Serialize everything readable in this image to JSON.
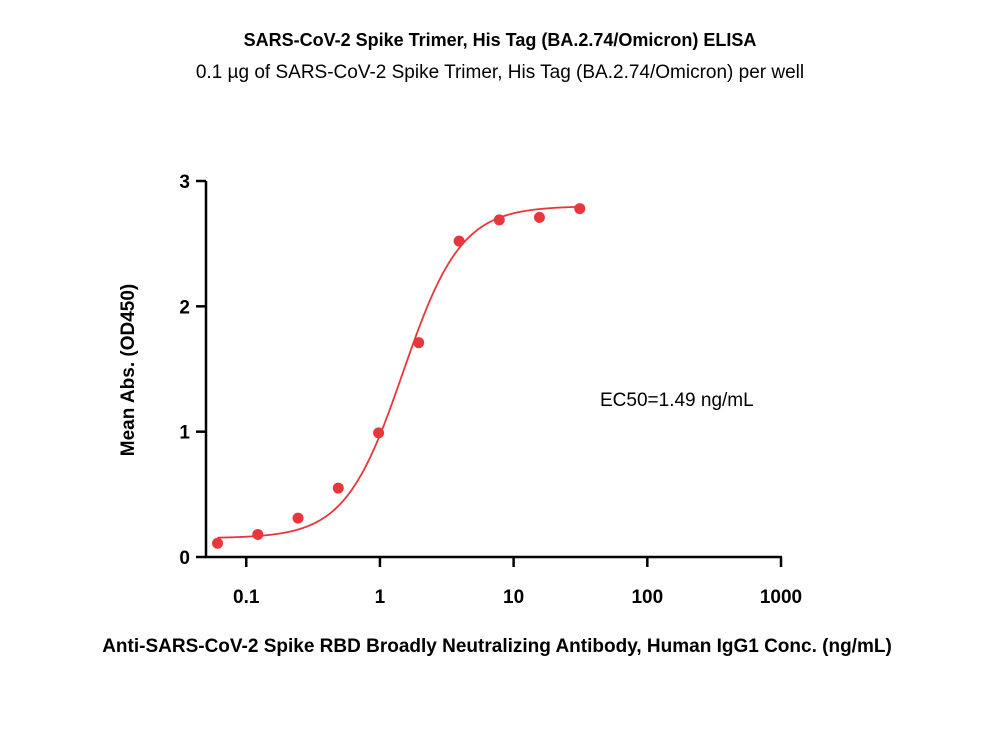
{
  "title": "SARS-CoV-2 Spike Trimer, His Tag (BA.2.74/Omicron) ELISA",
  "subtitle": "0.1 µg of SARS-CoV-2 Spike Trimer, His Tag (BA.2.74/Omicron) per well",
  "chart_data": {
    "type": "scatter",
    "title": "SARS-CoV-2 Spike Trimer, His Tag (BA.2.74/Omicron) ELISA",
    "subtitle": "0.1 µg of SARS-CoV-2 Spike Trimer, His Tag (BA.2.74/Omicron) per well",
    "xlabel": "Anti-SARS-CoV-2 Spike RBD Broadly Neutralizing Antibody, Human IgG1 Conc. (ng/mL)",
    "ylabel": "Mean Abs. (OD450)",
    "x_scale": "log",
    "xlim": [
      0.05,
      1000
    ],
    "ylim": [
      0,
      3
    ],
    "x_ticks": [
      0.1,
      1,
      10,
      100,
      1000
    ],
    "x_tick_labels": [
      "0.1",
      "1",
      "10",
      "100",
      "1000"
    ],
    "y_ticks": [
      0,
      1,
      2,
      3
    ],
    "y_tick_labels": [
      "0",
      "1",
      "2",
      "3"
    ],
    "grid": false,
    "color": "#e8363d",
    "series": [
      {
        "x": [
          0.061,
          0.122,
          0.244,
          0.488,
          0.977,
          1.95,
          3.91,
          7.81,
          15.6,
          31.25
        ],
        "y": [
          0.11,
          0.18,
          0.31,
          0.55,
          0.99,
          1.71,
          2.52,
          2.69,
          2.71,
          2.78
        ]
      }
    ],
    "fit": {
      "bottom": 0.15,
      "top": 2.8,
      "ec50": 1.49,
      "hill": 2.0
    },
    "annotation": "EC50=1.49 ng/mL"
  }
}
